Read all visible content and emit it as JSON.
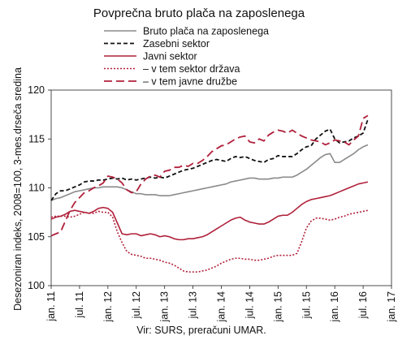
{
  "chart_data": {
    "type": "line",
    "title": "Povprečna bruto plača na zaposlenega",
    "ylabel": "Desezoniran indeks, 2008=100, 3-mes.drseča sredina",
    "xlabel": "",
    "source": "Vir: SURS, preračuni UMAR.",
    "ylim": [
      100,
      120
    ],
    "yticks": [
      100,
      105,
      110,
      115,
      120
    ],
    "grid": false,
    "legend": "top-right",
    "x_start": "jan. 11",
    "x_end": "jan. 17",
    "xtick_labels": [
      "jan. 11",
      "jul. 11",
      "jan. 12",
      "jul. 12",
      "jan. 13",
      "jul. 13",
      "jan. 14",
      "jul. 14",
      "jan. 15",
      "jul. 15",
      "jan. 16",
      "jul. 16",
      "jan. 17"
    ],
    "series": [
      {
        "name": "Bruto plača na zaposlenega",
        "color": "#8a8a8a",
        "dash": "solid",
        "values": [
          108.7,
          108.9,
          109.0,
          109.2,
          109.4,
          109.6,
          109.7,
          109.8,
          109.9,
          110.0,
          110.0,
          110.1,
          110.1,
          110.1,
          110.1,
          110.0,
          109.8,
          109.6,
          109.4,
          109.4,
          109.3,
          109.3,
          109.3,
          109.2,
          109.2,
          109.2,
          109.3,
          109.4,
          109.5,
          109.6,
          109.7,
          109.8,
          109.9,
          110.0,
          110.1,
          110.2,
          110.3,
          110.4,
          110.6,
          110.7,
          110.8,
          110.9,
          111.0,
          111.0,
          110.9,
          110.9,
          110.9,
          111.0,
          111.0,
          111.1,
          111.1,
          111.1,
          111.3,
          111.6,
          111.9,
          112.3,
          112.7,
          113.1,
          113.4,
          113.5,
          112.6,
          112.6,
          112.9,
          113.2,
          113.5,
          113.9,
          114.2,
          114.4
        ]
      },
      {
        "name": "Zasebni sektor",
        "color": "#111111",
        "dash": "dash",
        "values": [
          108.7,
          109.4,
          109.7,
          109.7,
          109.9,
          110.1,
          110.3,
          110.6,
          110.7,
          110.7,
          110.8,
          110.8,
          110.9,
          111.0,
          110.9,
          111.0,
          110.8,
          110.9,
          110.8,
          110.9,
          111.0,
          111.1,
          111.0,
          111.1,
          111.0,
          111.2,
          111.4,
          111.6,
          111.8,
          111.9,
          112.0,
          112.2,
          112.4,
          112.6,
          112.8,
          112.9,
          112.8,
          112.7,
          113.0,
          113.2,
          113.1,
          113.2,
          113.0,
          112.8,
          112.7,
          112.6,
          112.9,
          113.0,
          113.3,
          113.2,
          113.2,
          113.2,
          113.5,
          113.9,
          114.2,
          114.3,
          115.0,
          115.4,
          115.8,
          116.0,
          115.0,
          114.6,
          114.7,
          114.8,
          115.1,
          115.3,
          115.6,
          117.0
        ]
      },
      {
        "name": "Javni sektor",
        "color": "#b0203a",
        "dash": "solid",
        "values": [
          106.8,
          107.0,
          107.1,
          107.3,
          107.6,
          107.7,
          107.6,
          107.5,
          107.4,
          107.6,
          107.9,
          108.0,
          107.9,
          107.5,
          106.4,
          105.3,
          105.2,
          105.3,
          105.3,
          105.1,
          105.2,
          105.3,
          105.2,
          105.0,
          105.1,
          105.0,
          104.8,
          104.7,
          104.7,
          104.8,
          104.8,
          104.9,
          105.0,
          105.2,
          105.5,
          105.8,
          106.1,
          106.4,
          106.7,
          106.9,
          107.0,
          106.7,
          106.5,
          106.4,
          106.3,
          106.3,
          106.5,
          106.8,
          107.1,
          107.2,
          107.2,
          107.5,
          107.9,
          108.3,
          108.6,
          108.8,
          108.9,
          109.0,
          109.1,
          109.2,
          109.4,
          109.6,
          109.8,
          110.0,
          110.2,
          110.4,
          110.5,
          110.6
        ]
      },
      {
        "name": "– v tem sektor država",
        "color": "#b0203a",
        "dash": "dot",
        "values": [
          107.0,
          107.1,
          107.1,
          107.1,
          107.0,
          107.1,
          107.3,
          107.5,
          107.4,
          107.4,
          107.6,
          107.5,
          107.5,
          107.0,
          105.5,
          104.4,
          103.5,
          103.2,
          103.1,
          103.0,
          102.8,
          102.8,
          102.7,
          102.6,
          102.4,
          102.3,
          102.1,
          101.8,
          101.5,
          101.4,
          101.4,
          101.4,
          101.5,
          101.6,
          101.8,
          102.0,
          102.3,
          102.5,
          102.7,
          102.8,
          102.8,
          102.7,
          102.7,
          102.6,
          102.6,
          102.7,
          102.8,
          103.0,
          103.1,
          103.1,
          103.1,
          103.1,
          103.3,
          104.5,
          105.9,
          106.6,
          106.9,
          106.9,
          106.8,
          106.7,
          106.8,
          107.0,
          107.1,
          107.3,
          107.4,
          107.5,
          107.6,
          107.7
        ]
      },
      {
        "name": "– v tem javne družbe",
        "color": "#b0203a",
        "dash": "longdash",
        "values": [
          105.1,
          105.3,
          105.5,
          106.6,
          107.7,
          108.5,
          109.0,
          109.5,
          109.7,
          110.0,
          110.2,
          110.5,
          111.2,
          111.1,
          110.9,
          110.5,
          109.8,
          109.5,
          109.6,
          110.4,
          110.9,
          111.2,
          111.3,
          111.1,
          111.7,
          111.8,
          112.1,
          112.1,
          112.3,
          112.2,
          112.5,
          112.5,
          112.8,
          113.2,
          113.7,
          114.0,
          114.3,
          114.4,
          114.7,
          115.0,
          115.2,
          115.3,
          114.7,
          114.6,
          115.0,
          114.8,
          115.4,
          115.7,
          115.9,
          115.8,
          115.6,
          115.9,
          115.6,
          115.3,
          115.1,
          114.9,
          114.8,
          114.7,
          114.4,
          114.6,
          114.9,
          114.8,
          114.7,
          114.4,
          114.9,
          115.3,
          117.1,
          117.4
        ]
      }
    ]
  }
}
